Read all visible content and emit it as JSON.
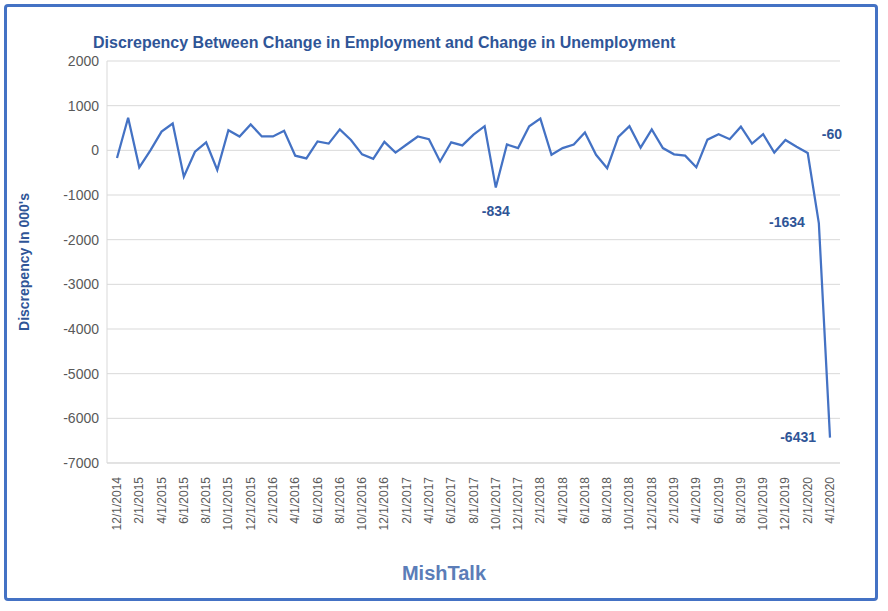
{
  "chart_data": {
    "type": "line",
    "title": "Discrepency Between Change in Employment and Change in Unemployment",
    "subtitle": "MishTalk",
    "y_label": "Discrepency In 000's",
    "categories": [
      "12/1/2014",
      null,
      "2/1/2015",
      null,
      "4/1/2015",
      null,
      "6/1/2015",
      null,
      "8/1/2015",
      null,
      "10/1/2015",
      null,
      "12/1/2015",
      null,
      "2/1/2016",
      null,
      "4/1/2016",
      null,
      "6/1/2016",
      null,
      "8/1/2016",
      null,
      "10/1/2016",
      null,
      "12/1/2016",
      null,
      "2/1/2017",
      null,
      "4/1/2017",
      null,
      "6/1/2017",
      null,
      "8/1/2017",
      null,
      "10/1/2017",
      null,
      "12/1/2017",
      null,
      "2/1/2018",
      null,
      "4/1/2018",
      null,
      "6/1/2018",
      null,
      "8/1/2018",
      null,
      "10/1/2018",
      null,
      "12/1/2018",
      null,
      "2/1/2019",
      null,
      "4/1/2019",
      null,
      "6/1/2019",
      null,
      "8/1/2019",
      null,
      "10/1/2019",
      null,
      "12/1/2019",
      null,
      "2/1/2020",
      null,
      "4/1/2020"
    ],
    "values": [
      -170,
      730,
      -380,
      0,
      420,
      600,
      -590,
      -30,
      180,
      -440,
      450,
      310,
      580,
      310,
      310,
      440,
      -120,
      -180,
      200,
      150,
      470,
      230,
      -90,
      -190,
      190,
      -50,
      130,
      310,
      250,
      -250,
      180,
      110,
      350,
      540,
      -834,
      130,
      50,
      540,
      710,
      -100,
      50,
      130,
      400,
      -100,
      -400,
      300,
      540,
      60,
      470,
      50,
      -90,
      -120,
      -380,
      240,
      360,
      250,
      530,
      150,
      360,
      -50,
      230,
      80,
      -60,
      -1634,
      -6431
    ],
    "value_labels": [
      null,
      null,
      null,
      null,
      null,
      null,
      null,
      null,
      null,
      null,
      null,
      null,
      null,
      null,
      null,
      null,
      null,
      null,
      null,
      null,
      null,
      null,
      null,
      null,
      null,
      null,
      null,
      null,
      null,
      null,
      null,
      null,
      null,
      null,
      "-834",
      null,
      null,
      null,
      null,
      null,
      null,
      null,
      null,
      null,
      null,
      null,
      null,
      null,
      null,
      null,
      null,
      null,
      null,
      null,
      null,
      null,
      null,
      null,
      null,
      null,
      null,
      null,
      "-60",
      "-1634",
      "-6431"
    ],
    "color": "#4472c4",
    "ylim": [
      -7000,
      2000
    ],
    "yticks": [
      -7000,
      -6000,
      -5000,
      -4000,
      -3000,
      -2000,
      -1000,
      0,
      1000,
      2000
    ],
    "grid": true
  }
}
